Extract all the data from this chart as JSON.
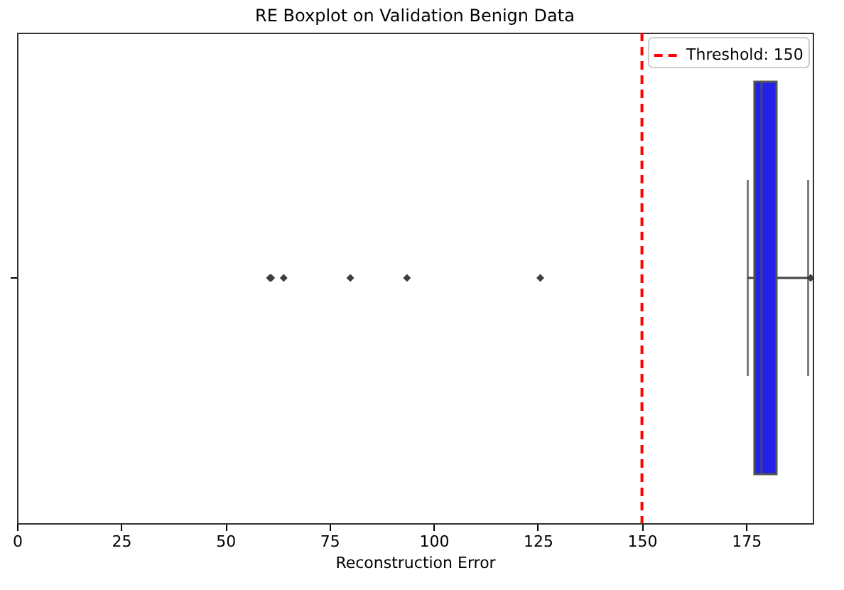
{
  "chart_data": {
    "type": "box",
    "title": "RE Boxplot on Validation Benign Data",
    "xlabel": "Reconstruction Error",
    "orientation": "horizontal",
    "categories": [
      null
    ],
    "boxes": [
      {
        "low": 175.4,
        "q1": 177,
        "median": 178.7,
        "q3": 182.3,
        "high": 189.9,
        "outliers": [
          60.7,
          61,
          64,
          80,
          93.6,
          125.6,
          190.5
        ]
      }
    ],
    "colors": [
      "#2121e8"
    ],
    "xlim": [
      0,
      191
    ],
    "xticks": [
      0,
      25,
      50,
      75,
      100,
      125,
      150,
      175
    ],
    "ref_lines": [
      {
        "axis": "x",
        "value": 150,
        "label": "Threshold: 150",
        "color": "#ff0000",
        "line_style": "dashed"
      }
    ],
    "legend": "top right",
    "grid": false,
    "marker": "diamond"
  }
}
